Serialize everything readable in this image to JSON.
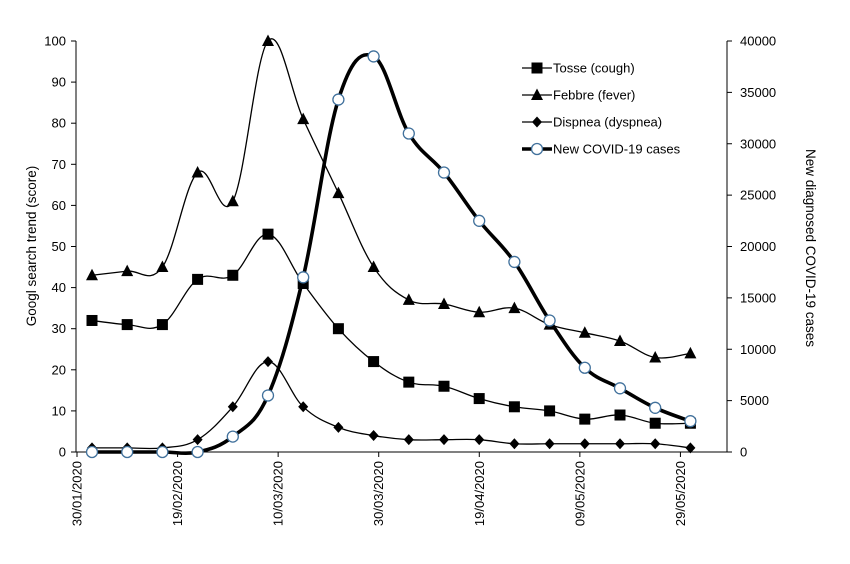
{
  "chart_data": {
    "type": "line",
    "ylabel": "Googl search trend (score)",
    "y2label": "New diagnosed COVID-19 cases",
    "ylim": [
      0,
      100
    ],
    "y2lim": [
      0,
      40000
    ],
    "yticks": [
      "0",
      "10",
      "20",
      "30",
      "40",
      "50",
      "60",
      "70",
      "80",
      "90",
      "100"
    ],
    "y2ticks": [
      "0",
      "5000",
      "10000",
      "15000",
      "20000",
      "25000",
      "30000",
      "35000",
      "40000"
    ],
    "xtick_labels": [
      "30/01/2020",
      "19/02/2020",
      "10/03/2020",
      "30/03/2020",
      "19/04/2020",
      "09/05/2020",
      "29/05/2020"
    ],
    "x": [
      "30/01/2020",
      "06/02/2020",
      "13/02/2020",
      "20/02/2020",
      "27/02/2020",
      "05/03/2020",
      "12/03/2020",
      "19/03/2020",
      "26/03/2020",
      "02/04/2020",
      "09/04/2020",
      "16/04/2020",
      "23/04/2020",
      "30/04/2020",
      "07/05/2020",
      "14/05/2020",
      "21/05/2020",
      "28/05/2020"
    ],
    "legend_position": "top-right",
    "grid": false,
    "series": [
      {
        "name": "Tosse (cough)",
        "axis": "left",
        "marker": "square",
        "values": [
          32,
          31,
          31,
          42,
          43,
          53,
          41,
          30,
          22,
          17,
          16,
          13,
          11,
          10,
          8,
          9,
          7,
          7
        ]
      },
      {
        "name": "Febbre (fever)",
        "axis": "left",
        "marker": "triangle",
        "values": [
          43,
          44,
          45,
          68,
          61,
          100,
          81,
          63,
          45,
          37,
          36,
          34,
          35,
          31,
          29,
          27,
          23,
          24
        ]
      },
      {
        "name": "Dispnea (dyspnea)",
        "axis": "left",
        "marker": "diamond",
        "values": [
          1,
          1,
          1,
          3,
          11,
          22,
          11,
          6,
          4,
          3,
          3,
          3,
          2,
          2,
          2,
          2,
          2,
          1
        ]
      },
      {
        "name": "New COVID-19 cases",
        "axis": "right",
        "marker": "circle",
        "values": [
          0,
          0,
          0,
          0,
          1500,
          5500,
          17000,
          34300,
          38500,
          31000,
          27200,
          22500,
          18500,
          12800,
          8200,
          6200,
          4300,
          3000
        ]
      }
    ]
  }
}
